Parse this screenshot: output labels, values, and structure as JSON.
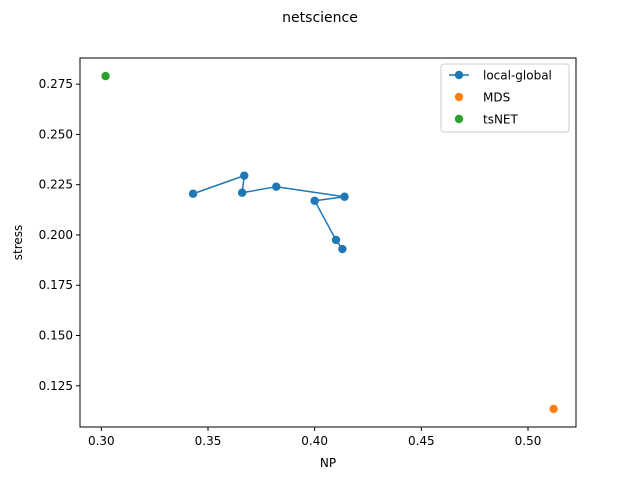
{
  "chart_data": {
    "type": "scatter",
    "title": "netscience",
    "xlabel": "NP",
    "ylabel": "stress",
    "xlim": [
      0.29,
      0.5225
    ],
    "ylim": [
      0.1045,
      0.288
    ],
    "xticks": [
      0.3,
      0.35,
      0.4,
      0.45,
      0.5
    ],
    "xtick_labels": [
      "0.30",
      "0.35",
      "0.40",
      "0.45",
      "0.50"
    ],
    "yticks": [
      0.125,
      0.15,
      0.175,
      0.2,
      0.225,
      0.25,
      0.275
    ],
    "ytick_labels": [
      "0.125",
      "0.150",
      "0.175",
      "0.200",
      "0.225",
      "0.250",
      "0.275"
    ],
    "grid": false,
    "legend_position": "top-right",
    "series": [
      {
        "name": "local-global",
        "style": "line-marker",
        "color": "#1f77b4",
        "x": [
          0.343,
          0.367,
          0.366,
          0.382,
          0.414,
          0.4,
          0.41,
          0.413
        ],
        "y": [
          0.2205,
          0.2295,
          0.221,
          0.224,
          0.219,
          0.217,
          0.1975,
          0.193
        ]
      },
      {
        "name": "MDS",
        "style": "marker",
        "color": "#ff7f0e",
        "x": [
          0.512
        ],
        "y": [
          0.1135
        ]
      },
      {
        "name": "tsNET",
        "style": "marker",
        "color": "#2ca02c",
        "x": [
          0.302
        ],
        "y": [
          0.279
        ]
      }
    ]
  }
}
